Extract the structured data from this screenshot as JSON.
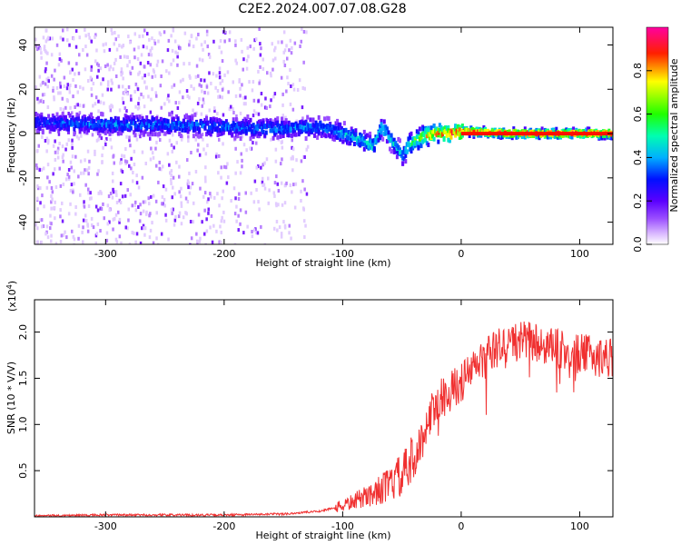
{
  "title": "C2E2.2024.007.07.08.G28",
  "chart_data": [
    {
      "type": "heatmap",
      "xlabel": "Height of straight line (km)",
      "ylabel": "Frequency (Hz)",
      "xlim": [
        -360,
        128
      ],
      "ylim": [
        -50,
        48
      ],
      "xticks": [
        -300,
        -200,
        -100,
        0,
        100
      ],
      "xtick_labels": [
        "-300",
        "-200",
        "-100",
        "0",
        "100"
      ],
      "yticks": [
        -40,
        -20,
        0,
        20,
        40
      ],
      "ytick_labels": [
        "-40",
        "-20",
        "0",
        "20",
        "40"
      ],
      "colorbar": {
        "label": "Normalized spectral amplitude",
        "range": [
          0,
          1
        ],
        "ticks": [
          0.0,
          0.2,
          0.4,
          0.6,
          0.8
        ],
        "tick_labels": [
          "0.0",
          "0.2",
          "0.4",
          "0.6",
          "0.8"
        ],
        "colormap": [
          "#ffffff",
          "#9a4dff",
          "#5a00ff",
          "#0000ff",
          "#00c8ff",
          "#00ff40",
          "#ffff00",
          "#ff0000",
          "#ff00a0"
        ]
      },
      "ridge": {
        "x": [
          -360,
          -300,
          -250,
          -200,
          -150,
          -120,
          -100,
          -85,
          -75,
          -68,
          -60,
          -50,
          -45,
          -40,
          -30,
          -20,
          -10,
          0,
          50,
          128
        ],
        "frequency": [
          5,
          4,
          4,
          3,
          2,
          3,
          0,
          -3,
          -6,
          3,
          -3,
          -10,
          -5,
          -3,
          -1,
          0,
          0,
          1,
          0,
          0
        ],
        "peak_amplitude": [
          0.35,
          0.4,
          0.4,
          0.4,
          0.4,
          0.4,
          0.45,
          0.5,
          0.5,
          0.5,
          0.5,
          0.45,
          0.6,
          0.65,
          0.8,
          0.9,
          0.95,
          0.9,
          0.95,
          0.95
        ]
      },
      "scatter_region_x": [
        -360,
        -140
      ]
    },
    {
      "type": "line",
      "xlabel": "Height of straight line (km)",
      "ylabel": "SNR (10 * V/V)",
      "scale_label": "(x10",
      "scale_exponent": "4",
      "scale_suffix": ")",
      "color": "#f03030",
      "xlim": [
        -360,
        128
      ],
      "ylim": [
        0,
        2.35
      ],
      "xticks": [
        -300,
        -200,
        -100,
        0,
        100
      ],
      "xtick_labels": [
        "-300",
        "-200",
        "-100",
        "0",
        "100"
      ],
      "yticks": [
        0.5,
        1.0,
        1.5,
        2.0
      ],
      "ytick_labels": [
        "0.5",
        "1.0",
        "1.5",
        "2.0"
      ],
      "series": [
        {
          "name": "SNR",
          "x": [
            -360,
            -300,
            -250,
            -200,
            -150,
            -120,
            -100,
            -80,
            -60,
            -45,
            -35,
            -28,
            -20,
            -10,
            0,
            10,
            20,
            30,
            40,
            50,
            60,
            70,
            80,
            90,
            100,
            110,
            128
          ],
          "values": [
            0.01,
            0.02,
            0.02,
            0.02,
            0.03,
            0.06,
            0.12,
            0.22,
            0.35,
            0.5,
            0.75,
            1.05,
            1.25,
            1.35,
            1.45,
            1.6,
            1.72,
            1.82,
            1.88,
            1.9,
            1.9,
            1.85,
            1.82,
            1.78,
            1.76,
            1.75,
            1.73
          ]
        }
      ]
    }
  ]
}
